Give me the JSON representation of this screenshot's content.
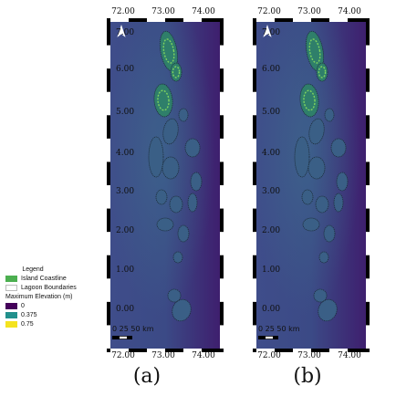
{
  "legend": {
    "title": "Legend",
    "items": [
      {
        "label": "Island Coastline",
        "color": "#4caf50"
      },
      {
        "label": "Lagoon Boundaries",
        "color": "#ffffff"
      }
    ],
    "elevation_title": "Maximum Elevation (m)",
    "elevation": [
      {
        "label": "0",
        "color": "#44015a"
      },
      {
        "label": "0.375",
        "color": "#22908c"
      },
      {
        "label": "0.75",
        "color": "#f4e31f"
      }
    ]
  },
  "map": {
    "x_ticks": [
      "72.00",
      "73.00",
      "74.00"
    ],
    "y_ticks": [
      "7.00",
      "6.00",
      "5.00",
      "4.00",
      "3.00",
      "2.00",
      "1.00",
      "0.00"
    ],
    "scale_text": "0  25 50 km",
    "north": "north-arrow-icon"
  },
  "panels": [
    {
      "caption": "(a)"
    },
    {
      "caption": "(b)"
    }
  ]
}
